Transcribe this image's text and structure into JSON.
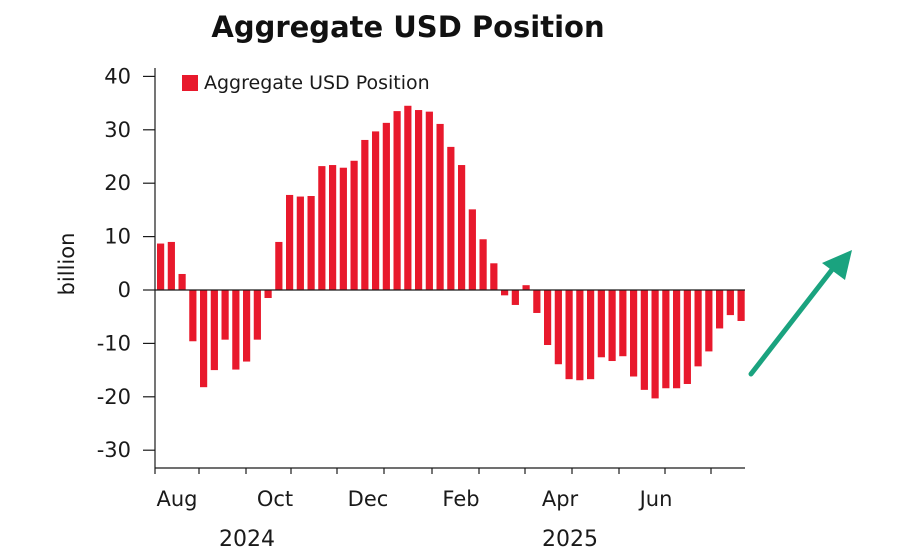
{
  "chart_data": {
    "type": "bar",
    "title": "Aggregate USD Position",
    "ylabel": "billion",
    "ylim": [
      -33,
      44
    ],
    "yticks": [
      40,
      30,
      20,
      10,
      0,
      -10,
      -20,
      -30
    ],
    "ytick_labels": [
      "40",
      "30",
      "20",
      "10",
      "0",
      "-10",
      "-20",
      "-30"
    ],
    "month_labels": [
      "Aug",
      "Oct",
      "Dec",
      "Feb",
      "Apr",
      "Jun"
    ],
    "year_labels": [
      "2024",
      "2025"
    ],
    "legend": {
      "position": "top-left"
    },
    "grid": false,
    "series": [
      {
        "name": "Aggregate USD Position",
        "color": "#e8192c",
        "values": [
          8.7,
          9.0,
          3.0,
          -9.6,
          -18.2,
          -15.0,
          -9.3,
          -14.9,
          -13.4,
          -9.3,
          -1.5,
          9.0,
          17.8,
          17.5,
          17.6,
          23.2,
          23.4,
          22.9,
          24.2,
          28.1,
          29.7,
          31.3,
          33.5,
          34.5,
          33.7,
          33.4,
          31.1,
          26.8,
          23.4,
          15.1,
          9.5,
          5.0,
          -1.0,
          -2.8,
          0.9,
          -4.3,
          -10.3,
          -13.9,
          -16.7,
          -16.9,
          -16.7,
          -12.6,
          -13.3,
          -12.4,
          -16.2,
          -18.7,
          -20.3,
          -18.4,
          -18.4,
          -17.6,
          -14.3,
          -11.5,
          -7.2,
          -4.7,
          -5.8
        ]
      }
    ],
    "annotation": {
      "shape": "upward-arrow",
      "color": "#1aa37f"
    }
  }
}
